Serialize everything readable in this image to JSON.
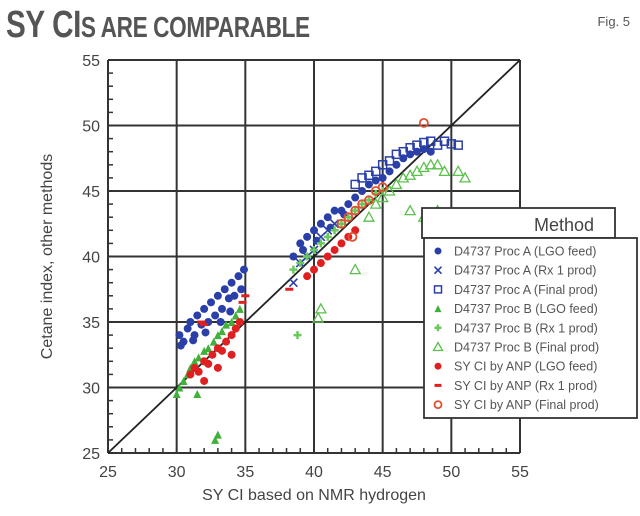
{
  "header": {
    "title_big": "SY CI",
    "title_small": "S ARE COMPARABLE",
    "fig_label": "Fig. 5"
  },
  "chart_data": {
    "type": "scatter",
    "title": "SY CIs ARE COMPARABLE",
    "xlabel": "SY CI based on NMR hydrogen",
    "ylabel": "Cetane index, other methods",
    "xlim": [
      25,
      55
    ],
    "ylim": [
      25,
      55
    ],
    "xticks": [
      25,
      30,
      35,
      40,
      45,
      50,
      55
    ],
    "yticks": [
      25,
      30,
      35,
      40,
      45,
      50,
      55
    ],
    "grid": true,
    "reference_line": "y = x",
    "legend_title": "Method",
    "legend_position": "lower right",
    "series": [
      {
        "name": "D4737 Proc A (LGO feed)",
        "marker": "dot",
        "color": "#2b3fa8",
        "points": [
          [
            30.2,
            34
          ],
          [
            30.5,
            33.5
          ],
          [
            30.8,
            34.5
          ],
          [
            31,
            35
          ],
          [
            31.3,
            34
          ],
          [
            31.5,
            35.5
          ],
          [
            31.8,
            34.8
          ],
          [
            32,
            36
          ],
          [
            32.3,
            35
          ],
          [
            32.5,
            36.5
          ],
          [
            32.8,
            35.5
          ],
          [
            33,
            37
          ],
          [
            33.3,
            36
          ],
          [
            33.5,
            37.5
          ],
          [
            33.8,
            36.8
          ],
          [
            34,
            38
          ],
          [
            34.2,
            37
          ],
          [
            34.5,
            38.5
          ],
          [
            34.7,
            37.5
          ],
          [
            34.9,
            39
          ],
          [
            30.3,
            33.2
          ],
          [
            31.2,
            33.6
          ],
          [
            32.1,
            34.2
          ],
          [
            33.2,
            35
          ],
          [
            33.9,
            35.8
          ],
          [
            38.5,
            40
          ],
          [
            39,
            41
          ],
          [
            39.5,
            41.5
          ],
          [
            40,
            42
          ],
          [
            40.5,
            42.5
          ],
          [
            41,
            43
          ],
          [
            41.5,
            43.5
          ],
          [
            42,
            43.5
          ],
          [
            42.5,
            44
          ],
          [
            43,
            44.5
          ],
          [
            43.5,
            45
          ],
          [
            44,
            45.5
          ],
          [
            44.5,
            45.8
          ],
          [
            45,
            46
          ],
          [
            45.5,
            46.5
          ],
          [
            46,
            47
          ],
          [
            46.5,
            47.5
          ],
          [
            47,
            47.8
          ],
          [
            47.5,
            48
          ],
          [
            48,
            48.2
          ],
          [
            48.5,
            48
          ],
          [
            39.2,
            40.5
          ],
          [
            40.2,
            41.2
          ],
          [
            41.2,
            42.2
          ],
          [
            42.2,
            43.2
          ]
        ]
      },
      {
        "name": "D4737 Proc A (Rx 1 prod)",
        "marker": "x",
        "color": "#2b3fa8",
        "points": [
          [
            38.5,
            38
          ],
          [
            39,
            39.5
          ],
          [
            39.5,
            40
          ],
          [
            40,
            40.5
          ],
          [
            40.5,
            41.5
          ],
          [
            41,
            42
          ],
          [
            41.5,
            42.5
          ]
        ]
      },
      {
        "name": "D4737 Proc A (Final prod)",
        "marker": "square",
        "color": "#2b3fa8",
        "points": [
          [
            43,
            45.5
          ],
          [
            43.5,
            46
          ],
          [
            44,
            46.2
          ],
          [
            44.5,
            46.5
          ],
          [
            45,
            47
          ],
          [
            45.5,
            47.3
          ],
          [
            46,
            47.8
          ],
          [
            46.5,
            48
          ],
          [
            47,
            48.3
          ],
          [
            47.5,
            48.5
          ],
          [
            48,
            48.7
          ],
          [
            48.5,
            48.8
          ],
          [
            49,
            48.5
          ],
          [
            49.5,
            48.8
          ],
          [
            50,
            48.6
          ],
          [
            50.5,
            48.5
          ]
        ]
      },
      {
        "name": "D4737 Proc B (LGO feed)",
        "marker": "triangle",
        "color": "#3fb03a",
        "points": [
          [
            30,
            29.5
          ],
          [
            30.2,
            30
          ],
          [
            30.5,
            30.5
          ],
          [
            30.8,
            31
          ],
          [
            31,
            31.5
          ],
          [
            31.3,
            32
          ],
          [
            31.6,
            32.3
          ],
          [
            32,
            32.8
          ],
          [
            32.3,
            33
          ],
          [
            32.7,
            33.5
          ],
          [
            33,
            34
          ],
          [
            33.3,
            34.3
          ],
          [
            33.6,
            34.8
          ],
          [
            34,
            35
          ],
          [
            34.3,
            35.5
          ],
          [
            34.6,
            36
          ],
          [
            31.5,
            29.5
          ],
          [
            32.8,
            26
          ],
          [
            33,
            26.4
          ]
        ]
      },
      {
        "name": "D4737 Proc B (Rx 1 prod)",
        "marker": "plus",
        "color": "#6cc85c",
        "points": [
          [
            38.5,
            39
          ],
          [
            39,
            39.5
          ],
          [
            39.5,
            40
          ],
          [
            40,
            40.5
          ],
          [
            40.5,
            41
          ],
          [
            41,
            41.5
          ],
          [
            41.5,
            42
          ],
          [
            42,
            42.5
          ],
          [
            42.5,
            43
          ],
          [
            43,
            43.5
          ],
          [
            43.5,
            44
          ],
          [
            44,
            44.3
          ],
          [
            38.8,
            34
          ],
          [
            44.5,
            44.8
          ],
          [
            45,
            45
          ]
        ]
      },
      {
        "name": "D4737 Proc B (Final prod)",
        "marker": "triangle-open",
        "color": "#5cc04c",
        "points": [
          [
            44,
            43
          ],
          [
            44.5,
            44
          ],
          [
            45,
            44.5
          ],
          [
            45.5,
            45
          ],
          [
            46,
            45.5
          ],
          [
            46.5,
            46
          ],
          [
            47,
            46.2
          ],
          [
            47.5,
            46.5
          ],
          [
            48,
            46.8
          ],
          [
            48.5,
            47
          ],
          [
            49,
            47
          ],
          [
            49.5,
            46.5
          ],
          [
            50.5,
            46.5
          ],
          [
            51,
            46
          ],
          [
            47,
            43.5
          ],
          [
            48,
            43
          ],
          [
            49,
            43.5
          ],
          [
            40.5,
            36
          ],
          [
            40.3,
            35.3
          ],
          [
            43,
            39
          ]
        ]
      },
      {
        "name": "SY CI by ANP (LGO feed)",
        "marker": "dot",
        "color": "#e02020",
        "points": [
          [
            31,
            31
          ],
          [
            31.3,
            31.5
          ],
          [
            31.6,
            31.2
          ],
          [
            32,
            32
          ],
          [
            32.3,
            31.8
          ],
          [
            32.6,
            32.5
          ],
          [
            33,
            33
          ],
          [
            33.3,
            32.8
          ],
          [
            33.6,
            33.5
          ],
          [
            34,
            34
          ],
          [
            34.3,
            34.5
          ],
          [
            34.6,
            35
          ],
          [
            32,
            30.5
          ],
          [
            33,
            31.5
          ],
          [
            34,
            32.5
          ],
          [
            39.5,
            38.5
          ],
          [
            40,
            39
          ],
          [
            40.5,
            39.5
          ],
          [
            41,
            40
          ],
          [
            41.5,
            40.5
          ],
          [
            42,
            41
          ],
          [
            42.5,
            41.5
          ],
          [
            43,
            42
          ]
        ]
      },
      {
        "name": "SY CI by ANP (Rx 1 prod)",
        "marker": "dash",
        "color": "#e02020",
        "points": [
          [
            31.8,
            35
          ],
          [
            32,
            34.8
          ],
          [
            38.2,
            37.5
          ],
          [
            34.8,
            36.5
          ],
          [
            35,
            37
          ]
        ]
      },
      {
        "name": "SY CI by ANP (Final prod)",
        "marker": "circle-open",
        "color": "#e05030",
        "points": [
          [
            42,
            42.5
          ],
          [
            42.5,
            43
          ],
          [
            43,
            43.5
          ],
          [
            43.5,
            44
          ],
          [
            44,
            44.3
          ],
          [
            44.5,
            45
          ],
          [
            45,
            45.3
          ],
          [
            48,
            50.2
          ],
          [
            42.8,
            41.5
          ]
        ]
      }
    ]
  }
}
